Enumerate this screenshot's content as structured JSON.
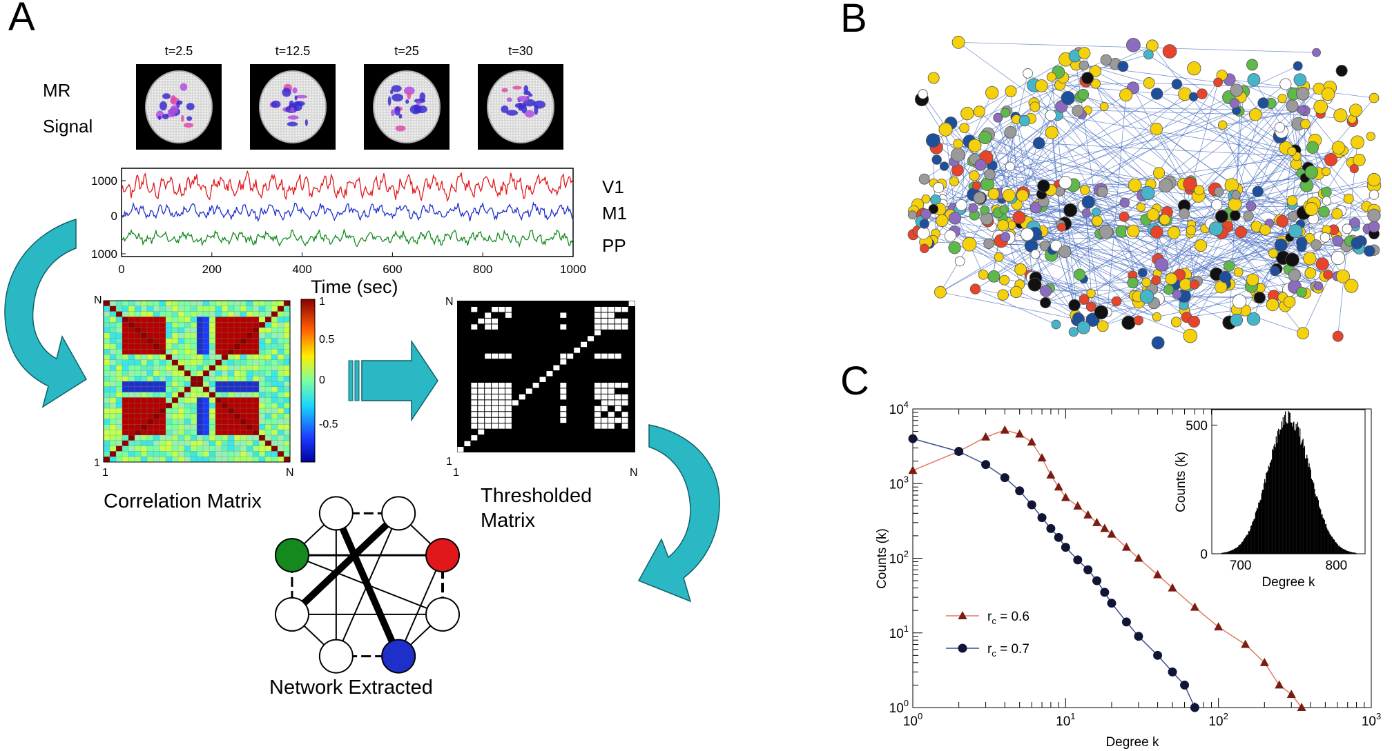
{
  "panel_labels": {
    "a": "A",
    "b": "B",
    "c": "C"
  },
  "colors": {
    "red": "#e1171b",
    "blue": "#1f2fc9",
    "green": "#148a1e",
    "teal": "#2ab8c4",
    "edge": "#4a6fc2",
    "tri": "#7a1c12",
    "triLine": "#e07a60",
    "dot": "#101535",
    "dotLine": "#3b4d8c"
  },
  "mr": {
    "label_line1": "MR",
    "label_line2": "Signal",
    "times": [
      "t=2.5",
      "t=12.5",
      "t=25",
      "t=30"
    ]
  },
  "timeseries": {
    "xlabel": "Time (sec)",
    "xticks": [
      "0",
      "200",
      "400",
      "600",
      "800",
      "1000"
    ],
    "yticks": [
      "1000",
      "0",
      "1000"
    ],
    "series": [
      {
        "name": "V1",
        "color": "#e1171b"
      },
      {
        "name": "M1",
        "color": "#1f2fc9"
      },
      {
        "name": "PP",
        "color": "#148a1e"
      }
    ]
  },
  "corr": {
    "title": "Correlation Matrix",
    "corner_top": "N",
    "corner_bottom": "1",
    "x_start": "1",
    "x_end": "N",
    "colorbar_ticks": [
      "1",
      "0.5",
      "0",
      "-0.5"
    ]
  },
  "thresh": {
    "title_line1": "Thresholded",
    "title_line2": "Matrix",
    "corner_top": "N",
    "corner_bottom": "1",
    "x_start": "1",
    "x_end": "N"
  },
  "network": {
    "title": "Network Extracted"
  },
  "chart_data": [
    {
      "type": "line",
      "title": "",
      "xlabel": "Degree k",
      "ylabel": "Counts (k)",
      "xscale": "log",
      "yscale": "log",
      "xlim": [
        1,
        1000
      ],
      "ylim": [
        1,
        10000
      ],
      "xticks": [
        {
          "base": "10",
          "exp": "0"
        },
        {
          "base": "10",
          "exp": "1"
        },
        {
          "base": "10",
          "exp": "2"
        },
        {
          "base": "10",
          "exp": "3"
        }
      ],
      "yticks": [
        {
          "base": "10",
          "exp": "0"
        },
        {
          "base": "10",
          "exp": "1"
        },
        {
          "base": "10",
          "exp": "2"
        },
        {
          "base": "10",
          "exp": "3"
        },
        {
          "base": "10",
          "exp": "4"
        }
      ],
      "legend_position": "bottom-left",
      "series": [
        {
          "name": "r",
          "sub": "c",
          "suffix": " = 0.6",
          "marker": "triangle",
          "x": [
            1,
            2,
            3,
            4,
            5,
            6,
            7,
            8,
            9,
            10,
            12,
            14,
            16,
            18,
            20,
            25,
            30,
            40,
            50,
            70,
            100,
            150,
            200,
            250,
            300,
            350
          ],
          "y": [
            1500,
            2700,
            4200,
            5200,
            4600,
            3600,
            2200,
            1300,
            900,
            650,
            500,
            380,
            300,
            250,
            210,
            140,
            100,
            60,
            40,
            22,
            12,
            7,
            4,
            2,
            1.5,
            1
          ]
        },
        {
          "name": "r",
          "sub": "c",
          "suffix": " = 0.7",
          "marker": "circle",
          "x": [
            1,
            2,
            3,
            4,
            5,
            6,
            7,
            8,
            9,
            10,
            12,
            14,
            16,
            18,
            20,
            25,
            30,
            40,
            50,
            60,
            70
          ],
          "y": [
            4000,
            2700,
            1800,
            1200,
            800,
            520,
            350,
            250,
            190,
            140,
            95,
            70,
            50,
            35,
            25,
            14,
            9,
            5,
            3,
            2,
            1
          ]
        }
      ]
    },
    {
      "type": "histogram",
      "title": "",
      "xlabel": "Degree k",
      "ylabel": "Counts (k)",
      "xlim": [
        670,
        830
      ],
      "ylim": [
        0,
        560
      ],
      "xticks": [
        "700",
        "800"
      ],
      "yticks": [
        "0",
        "500"
      ],
      "distribution": {
        "mean": 750,
        "sd": 22,
        "peak": 540
      }
    }
  ]
}
